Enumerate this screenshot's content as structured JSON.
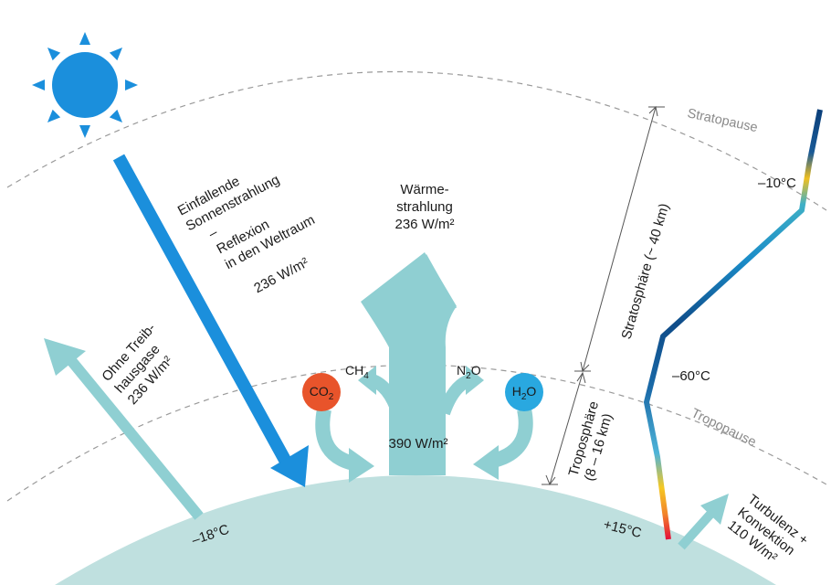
{
  "layers": {
    "stratopause": "Stratopause",
    "tropopause": "Tropopause",
    "stratosphere": "Stratosphäre (~ 40 km)",
    "troposphere_line1": "Troposphäre",
    "troposphere_line2": "(8 – 16 km)"
  },
  "solar": {
    "line1": "Einfallende",
    "line2": "Sonnenstrahlung",
    "line3": "–",
    "line4": "Reflexion",
    "line5": "in den Weltraum",
    "value": "236 W/m²"
  },
  "heat": {
    "line1": "Wärme-",
    "line2": "strahlung",
    "line3": "236 W/m²"
  },
  "no_ghg": {
    "line1": "Ohne Treib-",
    "line2": "hausgase",
    "line3": "236 W/m²"
  },
  "surface": {
    "value": "390 W/m²"
  },
  "gases": {
    "co2": {
      "main": "CO",
      "sub": "2",
      "color": "#e8542b"
    },
    "h2o": {
      "main": "H",
      "sub": "2",
      "tail": "O",
      "color": "#29a8e0"
    },
    "ch4": {
      "main": "CH",
      "sub": "4"
    },
    "n2o": {
      "main": "N",
      "sub": "2",
      "tail": "O"
    }
  },
  "temps": {
    "minus10": "–10°C",
    "minus60": "–60°C",
    "plus15": "+15°C",
    "minus18": "–18°C"
  },
  "convection": {
    "line1": "Turbulenz +",
    "line2": "Konvektion",
    "line3": "110 W/m²"
  },
  "colors": {
    "sun": "#1b8fdc",
    "solar_arrow": "#1b8fdc",
    "heat_arrow": "#8fcfd2",
    "earth": "#bfe0df"
  }
}
